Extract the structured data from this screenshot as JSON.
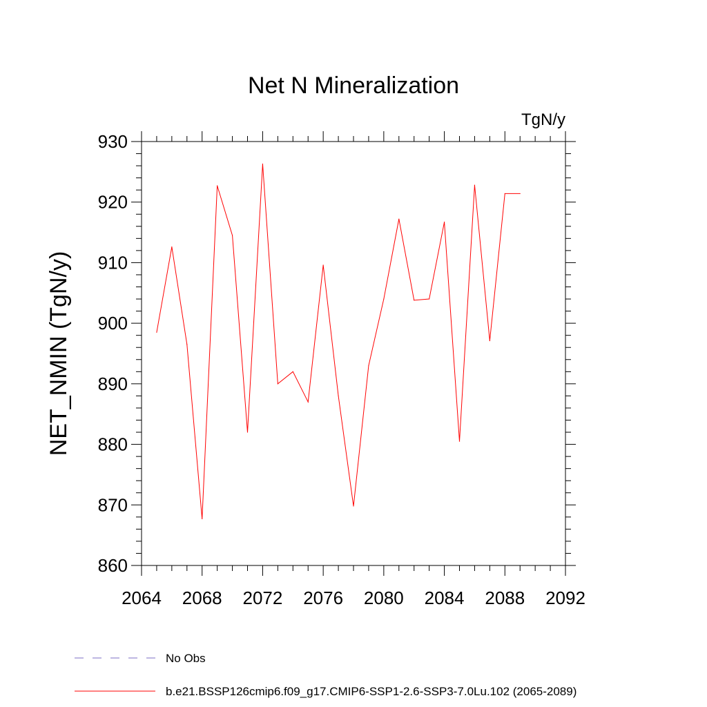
{
  "chart_data": {
    "type": "line",
    "title": "Net N Mineralization",
    "units_label": "TgN/y",
    "xlabel": "",
    "ylabel": "NET_NMIN  (TgN/y)",
    "xlim": [
      2064,
      2092
    ],
    "ylim": [
      860,
      930
    ],
    "x_ticks": [
      2064,
      2068,
      2072,
      2076,
      2080,
      2084,
      2088,
      2092
    ],
    "y_ticks": [
      860,
      870,
      880,
      890,
      900,
      910,
      920,
      930
    ],
    "x_tick_labels": [
      "2064",
      "2068",
      "2072",
      "2076",
      "2080",
      "2084",
      "2088",
      "2092"
    ],
    "y_tick_labels": [
      "860",
      "870",
      "880",
      "890",
      "900",
      "910",
      "920",
      "930"
    ],
    "grid": false,
    "series": [
      {
        "name": "b.e21.BSSP126cmip6.f09_g17.CMIP6-SSP1-2.6-SSP3-7.0Lu.102 (2065-2089)",
        "color": "#ff0000",
        "style": "solid",
        "x": [
          2065,
          2066,
          2067,
          2068,
          2069,
          2070,
          2071,
          2072,
          2073,
          2074,
          2075,
          2076,
          2077,
          2078,
          2079,
          2080,
          2081,
          2082,
          2083,
          2084,
          2085,
          2086,
          2087,
          2088,
          2089
        ],
        "values": [
          898.5,
          912.6,
          896.5,
          867.7,
          922.7,
          914.5,
          882.0,
          926.3,
          890.0,
          892.0,
          887.0,
          909.6,
          888.0,
          869.8,
          893.0,
          904.0,
          917.2,
          903.8,
          904.0,
          916.7,
          880.5,
          922.8,
          897.1,
          921.4,
          921.4
        ]
      }
    ],
    "legend": [
      {
        "label": "No Obs",
        "color": "#7b6cc4",
        "style": "dashed"
      },
      {
        "label": "b.e21.BSSP126cmip6.f09_g17.CMIP6-SSP1-2.6-SSP3-7.0Lu.102 (2065-2089)",
        "color": "#ff0000",
        "style": "solid"
      }
    ],
    "legend_position": "bottom"
  }
}
